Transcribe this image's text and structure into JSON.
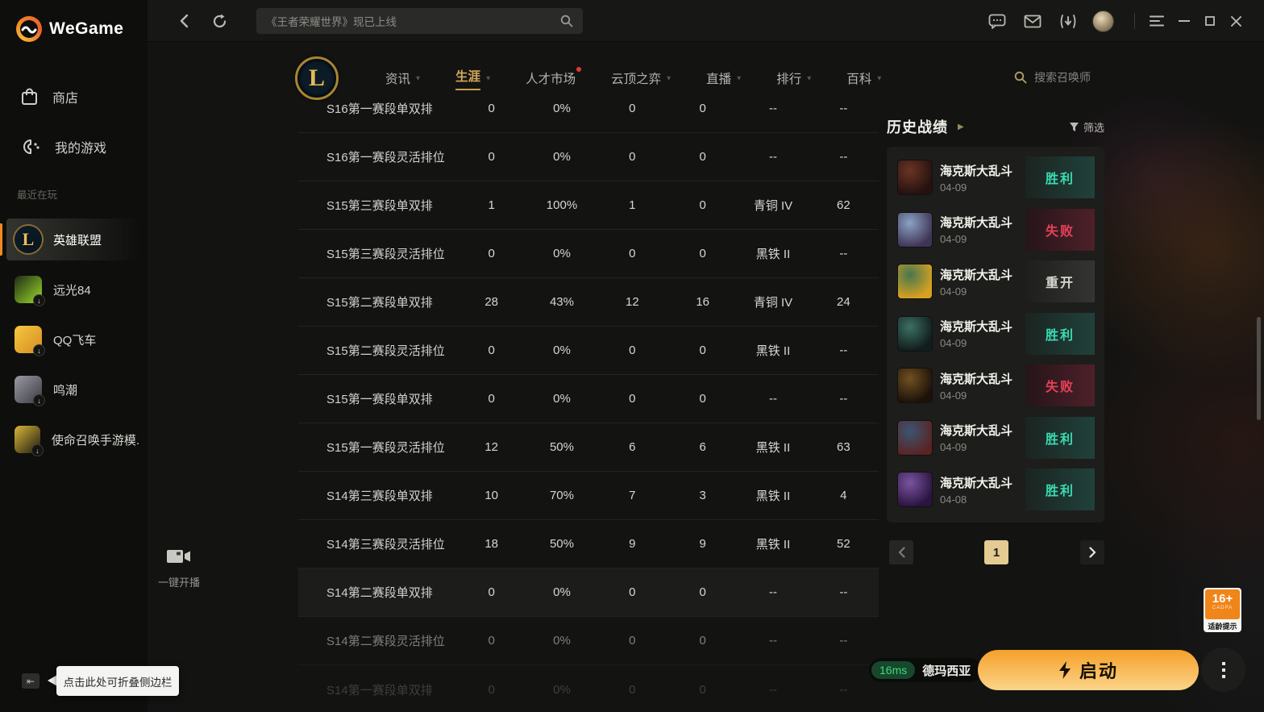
{
  "app": {
    "name": "WeGame"
  },
  "topbar": {
    "search_placeholder": "《王者荣耀世界》现已上线"
  },
  "sidebar": {
    "store_label": "商店",
    "my_games_label": "我的游戏",
    "recent_label": "最近在玩",
    "games": [
      {
        "name": "英雄联盟",
        "selected": true,
        "emblem": "L",
        "icon_colors": [
          "#0d1d2a",
          "#091420"
        ],
        "download": false
      },
      {
        "name": "远光84",
        "selected": false,
        "emblem": "",
        "icon_colors": [
          "#202a16",
          "#9adb2b"
        ],
        "download": true
      },
      {
        "name": "QQ飞车",
        "selected": false,
        "emblem": "",
        "icon_colors": [
          "#f3c93f",
          "#d88a22"
        ],
        "download": true
      },
      {
        "name": "鸣潮",
        "selected": false,
        "emblem": "",
        "icon_colors": [
          "#9a9aa2",
          "#3a3a44"
        ],
        "download": true
      },
      {
        "name": "使命召唤手游模...",
        "selected": false,
        "emblem": "",
        "icon_colors": [
          "#d8b63a",
          "#1c1a10"
        ],
        "download": true
      }
    ],
    "collapse_tooltip": "点击此处可折叠侧边栏"
  },
  "gamenav": {
    "tabs": [
      {
        "label": "资讯",
        "caret": true,
        "active": false,
        "dot": false
      },
      {
        "label": "生涯",
        "caret": true,
        "active": true,
        "dot": false
      },
      {
        "label": "人才市场",
        "caret": false,
        "active": false,
        "dot": true
      },
      {
        "label": "云顶之弈",
        "caret": true,
        "active": false,
        "dot": false
      },
      {
        "label": "直播",
        "caret": true,
        "active": false,
        "dot": false
      },
      {
        "label": "排行",
        "caret": true,
        "active": false,
        "dot": false
      },
      {
        "label": "百科",
        "caret": true,
        "active": false,
        "dot": false
      }
    ],
    "search_placeholder": "搜索召唤师"
  },
  "stats_table": {
    "rows": [
      {
        "season": "S16第一赛段单双排",
        "games": "0",
        "winrate": "0%",
        "wins": "0",
        "losses": "0",
        "rank": "--",
        "points": "--",
        "state": ""
      },
      {
        "season": "S16第一赛段灵活排位",
        "games": "0",
        "winrate": "0%",
        "wins": "0",
        "losses": "0",
        "rank": "--",
        "points": "--",
        "state": ""
      },
      {
        "season": "S15第三赛段单双排",
        "games": "1",
        "winrate": "100%",
        "wins": "1",
        "losses": "0",
        "rank": "青铜 IV",
        "points": "62",
        "state": ""
      },
      {
        "season": "S15第三赛段灵活排位",
        "games": "0",
        "winrate": "0%",
        "wins": "0",
        "losses": "0",
        "rank": "黑铁 II",
        "points": "--",
        "state": ""
      },
      {
        "season": "S15第二赛段单双排",
        "games": "28",
        "winrate": "43%",
        "wins": "12",
        "losses": "16",
        "rank": "青铜 IV",
        "points": "24",
        "state": ""
      },
      {
        "season": "S15第二赛段灵活排位",
        "games": "0",
        "winrate": "0%",
        "wins": "0",
        "losses": "0",
        "rank": "黑铁 II",
        "points": "--",
        "state": ""
      },
      {
        "season": "S15第一赛段单双排",
        "games": "0",
        "winrate": "0%",
        "wins": "0",
        "losses": "0",
        "rank": "--",
        "points": "--",
        "state": ""
      },
      {
        "season": "S15第一赛段灵活排位",
        "games": "12",
        "winrate": "50%",
        "wins": "6",
        "losses": "6",
        "rank": "黑铁 II",
        "points": "63",
        "state": ""
      },
      {
        "season": "S14第三赛段单双排",
        "games": "10",
        "winrate": "70%",
        "wins": "7",
        "losses": "3",
        "rank": "黑铁 II",
        "points": "4",
        "state": ""
      },
      {
        "season": "S14第三赛段灵活排位",
        "games": "18",
        "winrate": "50%",
        "wins": "9",
        "losses": "9",
        "rank": "黑铁 II",
        "points": "52",
        "state": ""
      },
      {
        "season": "S14第二赛段单双排",
        "games": "0",
        "winrate": "0%",
        "wins": "0",
        "losses": "0",
        "rank": "--",
        "points": "--",
        "state": "hover"
      },
      {
        "season": "S14第二赛段灵活排位",
        "games": "0",
        "winrate": "0%",
        "wins": "0",
        "losses": "0",
        "rank": "--",
        "points": "--",
        "state": "dim"
      },
      {
        "season": "S14第一赛段单双排",
        "games": "0",
        "winrate": "0%",
        "wins": "0",
        "losses": "0",
        "rank": "--",
        "points": "--",
        "state": "dim2"
      }
    ]
  },
  "history": {
    "title": "历史战绩",
    "filter_label": "筛选",
    "matches": [
      {
        "mode": "海克斯大乱斗",
        "date": "04-09",
        "result": "胜利",
        "type": "win",
        "avatar_colors": [
          "#6b3424",
          "#241110"
        ]
      },
      {
        "mode": "海克斯大乱斗",
        "date": "04-09",
        "result": "失败",
        "type": "loss",
        "avatar_colors": [
          "#8aa3c4",
          "#403456"
        ]
      },
      {
        "mode": "海克斯大乱斗",
        "date": "04-09",
        "result": "重开",
        "type": "remake",
        "avatar_colors": [
          "#47774f",
          "#d8a020"
        ]
      },
      {
        "mode": "海克斯大乱斗",
        "date": "04-09",
        "result": "胜利",
        "type": "win",
        "avatar_colors": [
          "#3c6f62",
          "#101d1c"
        ]
      },
      {
        "mode": "海克斯大乱斗",
        "date": "04-09",
        "result": "失败",
        "type": "loss",
        "avatar_colors": [
          "#705020",
          "#1c120a"
        ]
      },
      {
        "mode": "海克斯大乱斗",
        "date": "04-09",
        "result": "胜利",
        "type": "win",
        "avatar_colors": [
          "#3a5572",
          "#5a2424"
        ]
      },
      {
        "mode": "海克斯大乱斗",
        "date": "04-08",
        "result": "胜利",
        "type": "win",
        "avatar_colors": [
          "#7a54a0",
          "#2a1440"
        ]
      }
    ],
    "page": "1"
  },
  "footer": {
    "ping": "16ms",
    "server": "德玛西亚",
    "launch_label": "启动"
  },
  "stream": {
    "label": "一键开播"
  },
  "age_badge": {
    "rating": "16+",
    "org": "CADPA",
    "label": "适龄提示"
  },
  "icons": {
    "caret": "▾",
    "arrow_right": "▶",
    "download": "↓",
    "collapse": "⇤"
  },
  "colors": {
    "accent_orange": "#f08c1e",
    "gold": "#d2aa5a",
    "win": "#3adbb2",
    "loss": "#e64058",
    "ping_green": "#41d87c"
  }
}
